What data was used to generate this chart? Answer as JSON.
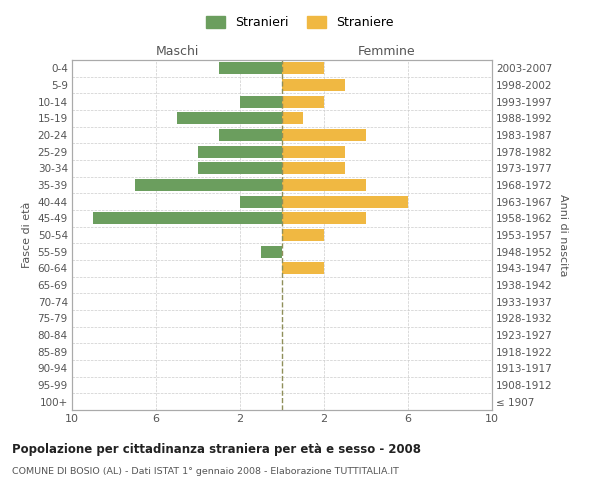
{
  "age_groups": [
    "100+",
    "95-99",
    "90-94",
    "85-89",
    "80-84",
    "75-79",
    "70-74",
    "65-69",
    "60-64",
    "55-59",
    "50-54",
    "45-49",
    "40-44",
    "35-39",
    "30-34",
    "25-29",
    "20-24",
    "15-19",
    "10-14",
    "5-9",
    "0-4"
  ],
  "birth_years": [
    "≤ 1907",
    "1908-1912",
    "1913-1917",
    "1918-1922",
    "1923-1927",
    "1928-1932",
    "1933-1937",
    "1938-1942",
    "1943-1947",
    "1948-1952",
    "1953-1957",
    "1958-1962",
    "1963-1967",
    "1968-1972",
    "1973-1977",
    "1978-1982",
    "1983-1987",
    "1988-1992",
    "1993-1997",
    "1998-2002",
    "2003-2007"
  ],
  "males": [
    0,
    0,
    0,
    0,
    0,
    0,
    0,
    0,
    0,
    1,
    0,
    9,
    2,
    7,
    4,
    4,
    3,
    5,
    2,
    0,
    3
  ],
  "females": [
    0,
    0,
    0,
    0,
    0,
    0,
    0,
    0,
    2,
    0,
    2,
    4,
    6,
    4,
    3,
    3,
    4,
    1,
    2,
    3,
    2
  ],
  "male_color": "#6b9e5e",
  "female_color": "#f0b842",
  "background_color": "#ffffff",
  "grid_color": "#cccccc",
  "center_line_color": "#8f8f5a",
  "xlim": 10,
  "title": "Popolazione per cittadinanza straniera per età e sesso - 2008",
  "subtitle": "COMUNE DI BOSIO (AL) - Dati ISTAT 1° gennaio 2008 - Elaborazione TUTTITALIA.IT",
  "ylabel_left": "Fasce di età",
  "ylabel_right": "Anni di nascita",
  "header_left": "Maschi",
  "header_right": "Femmine",
  "legend_stranieri": "Stranieri",
  "legend_straniere": "Straniere"
}
